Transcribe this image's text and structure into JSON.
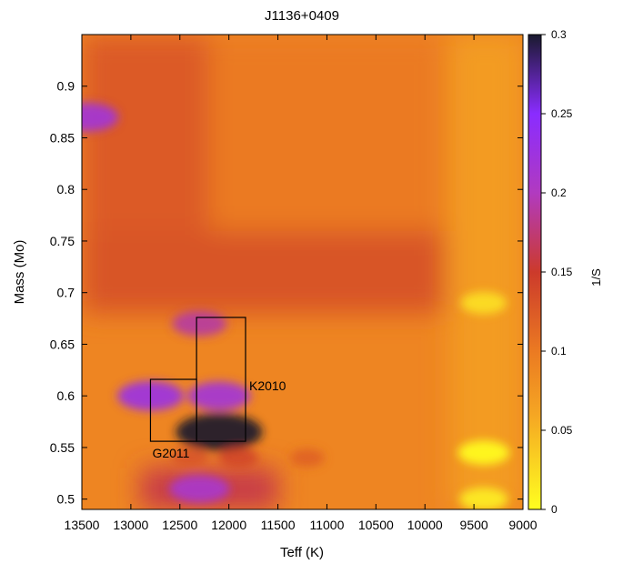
{
  "chart_data": {
    "type": "heatmap",
    "title": "J1136+0409",
    "xlabel": "Teff (K)",
    "ylabel": "Mass (Mo)",
    "colorbar_label": "1/S",
    "xlim": [
      13500,
      9000
    ],
    "ylim": [
      0.49,
      0.95
    ],
    "clim": [
      0,
      0.3
    ],
    "x_ticks": [
      13500,
      13000,
      12500,
      12000,
      11500,
      11000,
      10500,
      10000,
      9500,
      9000
    ],
    "y_ticks": [
      0.5,
      0.55,
      0.6,
      0.65,
      0.7,
      0.75,
      0.8,
      0.85,
      0.9
    ],
    "colorbar_ticks": [
      0,
      0.05,
      0.1,
      0.15,
      0.2,
      0.25,
      0.3
    ],
    "colormap": [
      {
        "value": 0.0,
        "color": "#ffff20"
      },
      {
        "value": 0.06,
        "color": "#f5a623"
      },
      {
        "value": 0.1,
        "color": "#eb7a22"
      },
      {
        "value": 0.15,
        "color": "#cc3a2b"
      },
      {
        "value": 0.2,
        "color": "#b13ac0"
      },
      {
        "value": 0.25,
        "color": "#8a2cff"
      },
      {
        "value": 0.3,
        "color": "#1a1a2e"
      }
    ],
    "background_value": 0.09,
    "regions": [
      {
        "teff": [
          13500,
          12200
        ],
        "mass": [
          0.72,
          0.95
        ],
        "value": 0.125
      },
      {
        "teff": [
          12200,
          9800
        ],
        "mass": [
          0.76,
          0.95
        ],
        "value": 0.1
      },
      {
        "teff": [
          13500,
          9800
        ],
        "mass": [
          0.68,
          0.76
        ],
        "value": 0.13
      },
      {
        "teff": [
          9750,
          9000
        ],
        "mass": [
          0.49,
          0.95
        ],
        "value": 0.07
      },
      {
        "teff": [
          12900,
          11500
        ],
        "mass": [
          0.49,
          0.53
        ],
        "value": 0.16
      }
    ],
    "features": [
      {
        "teff": 13450,
        "mass": 0.87,
        "value": 0.22
      },
      {
        "teff": 12300,
        "mass": 0.67,
        "value": 0.19
      },
      {
        "teff": 12800,
        "mass": 0.6,
        "value": 0.23
      },
      {
        "teff": 12100,
        "mass": 0.6,
        "value": 0.22
      },
      {
        "teff": 12100,
        "mass": 0.565,
        "value": 0.3
      },
      {
        "teff": 12300,
        "mass": 0.51,
        "value": 0.21
      },
      {
        "teff": 12400,
        "mass": 0.54,
        "value": 0.13
      },
      {
        "teff": 11900,
        "mass": 0.54,
        "value": 0.14
      },
      {
        "teff": 11200,
        "mass": 0.54,
        "value": 0.12
      },
      {
        "teff": 9400,
        "mass": 0.545,
        "value": 0.0
      },
      {
        "teff": 9400,
        "mass": 0.69,
        "value": 0.02
      },
      {
        "teff": 9400,
        "mass": 0.5,
        "value": 0.01
      }
    ],
    "boxes": [
      {
        "label": "G2011",
        "teff": [
          12800,
          12330
        ],
        "mass": [
          0.556,
          0.616
        ]
      },
      {
        "label": "K2010",
        "teff": [
          12330,
          11830
        ],
        "mass": [
          0.556,
          0.676
        ]
      }
    ],
    "grid": false,
    "legend": "colorbar-right"
  }
}
